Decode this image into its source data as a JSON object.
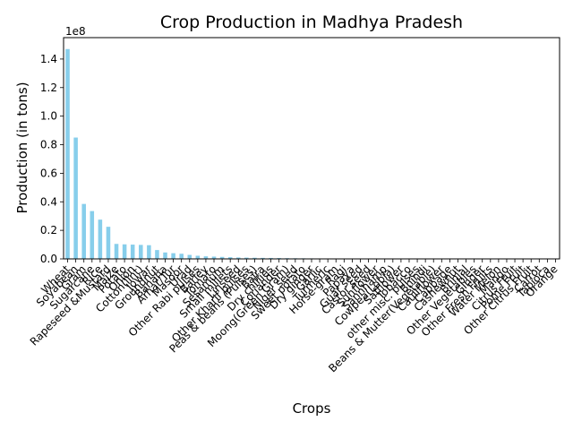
{
  "chart_data": {
    "type": "bar",
    "title": "Crop Production in Madhya Pradesh",
    "xlabel": "Crops",
    "ylabel": "Production (in tons)",
    "y_offset_label": "1e8",
    "ylim": [
      0,
      155000000
    ],
    "y_ticks": [
      {
        "value": 0,
        "label": "0.0"
      },
      {
        "value": 20000000,
        "label": "0.2"
      },
      {
        "value": 40000000,
        "label": "0.4"
      },
      {
        "value": 60000000,
        "label": "0.6"
      },
      {
        "value": 80000000,
        "label": "0.8"
      },
      {
        "value": 100000000,
        "label": "1.0"
      },
      {
        "value": 120000000,
        "label": "1.2"
      },
      {
        "value": 140000000,
        "label": "1.4"
      }
    ],
    "grid": false,
    "legend": "none",
    "bar_color": "#87ceeb",
    "categories": [
      "Wheat",
      "Soyabean",
      "Gram",
      "Sugarcane",
      "Rice",
      "Rapeseed &Mustard",
      "Maize",
      "Potato",
      "Onion",
      "Cotton(lint)",
      "Jowar",
      "Groundnut",
      "Banana",
      "Arhar/Tur",
      "Masoor",
      "Urad",
      "Other  Rabi pulses",
      "Barley",
      "Tomato",
      "Sesamum",
      "Small millets",
      "Linseed",
      "Other Kharif pulses",
      "Peas & beans (Pulses)",
      "Bajra",
      "Dry chillies",
      "Coriander",
      "Moong(Green Gram)",
      "Niger seed",
      "Sweet potato",
      "Dry ginger",
      "Garlic",
      "Turmeric",
      "Horse-gram",
      "Ragi",
      "Papaya",
      "Guar seed",
      "Castor seed",
      "Sunflower",
      "Sannhamp",
      "Cowpea(Lobia)",
      "Safflower",
      "Tobacco",
      "other misc. pulses",
      "Bhindi",
      "Beans & Mutter(Vegetable)",
      "Cauliflower",
      "Cabbage",
      "Cashewnut",
      "Brinjal",
      "Other Vegetables",
      "Ginger",
      "Other Fresh Fruits",
      "Water Melon",
      "Mango",
      "Citrus Fruit",
      "Pome Fruit",
      "Other Citrus Fruit",
      "Carrot",
      "Tapioca",
      "Orange"
    ],
    "values": [
      147000000,
      85000000,
      38500000,
      33500000,
      27500000,
      22500000,
      10500000,
      10200000,
      10000000,
      9800000,
      9600000,
      6200000,
      4500000,
      4000000,
      3600000,
      2800000,
      2200000,
      1800000,
      1600000,
      1400000,
      1200000,
      1000000,
      900000,
      800000,
      700000,
      650000,
      600000,
      500000,
      450000,
      400000,
      350000,
      300000,
      260000,
      230000,
      200000,
      180000,
      160000,
      140000,
      120000,
      100000,
      90000,
      80000,
      70000,
      60000,
      50000,
      45000,
      40000,
      35000,
      30000,
      25000,
      22000,
      20000,
      18000,
      15000,
      12000,
      10000,
      8000,
      6000,
      5000,
      4000,
      3000
    ]
  }
}
